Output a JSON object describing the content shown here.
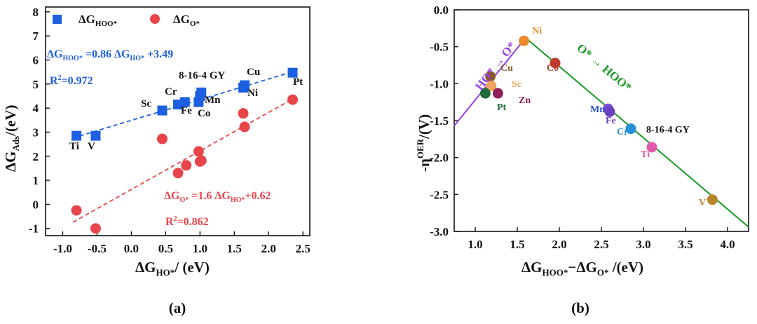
{
  "panel_a": {
    "label": "(a)",
    "axis": {
      "xlabel_base": "ΔG",
      "xlabel_sub": "HO*",
      "xlabel_tail": "/ (eV)",
      "ylabel_base": "ΔG",
      "ylabel_sub": "Ads",
      "ylabel_tail": "/(eV)"
    },
    "legend": [
      {
        "base": "ΔG",
        "sub": "HOO*",
        "color": "#1c5fe0",
        "marker": "square"
      },
      {
        "base": "ΔG",
        "sub": "O*",
        "color": "#e8454b",
        "marker": "circle"
      }
    ],
    "eq_hoo": {
      "t1": "ΔG",
      "t2": "HOO*",
      "t3": " =0.86 ΔG",
      "t4": "HO*",
      "t5": " +3.49"
    },
    "r2_hoo": {
      "t1": "R",
      "t2": "2",
      "t3": "=0.972"
    },
    "eq_o": {
      "t1": "ΔG",
      "t2": "O*",
      "t3": " =1.6 ΔG",
      "t4": "HO*",
      "t5": "+0.62"
    },
    "r2_o": {
      "t1": "R",
      "t2": "2",
      "t3": "=0.862"
    },
    "point_labels": [
      "Ti",
      "V",
      "Sc",
      "Cr",
      "Fe",
      "Co",
      "Mn",
      "8-16-4 GY",
      "Cu",
      "Ni",
      "Pt"
    ]
  },
  "panel_b": {
    "label": "(b)",
    "axis": {
      "xlabel": "ΔG",
      "xlabel_sub1": "HOO*",
      "xlabel_mid": "−ΔG",
      "xlabel_sub2": "O*",
      "xlabel_tail": " /(eV)",
      "ylabel_pre": "-η",
      "ylabel_sup": "OER",
      "ylabel_tail": "/(V)"
    },
    "line_labels": {
      "left": "HO* → O*",
      "right": "O* → HOO*"
    },
    "colors": {
      "left_line": "#9a3ee0",
      "right_line": "#1a9a28"
    }
  },
  "chart_data": [
    {
      "type": "scatter",
      "xlabel": "ΔGHO*/ (eV)",
      "ylabel": "ΔGAds/(eV)",
      "xlim": [
        -1.25,
        2.6
      ],
      "ylim": [
        -1.3,
        8.2
      ],
      "xticks": [
        -1.0,
        -0.5,
        0.0,
        0.5,
        1.0,
        1.5,
        2.0,
        2.5
      ],
      "yticks": [
        -1,
        0,
        1,
        2,
        3,
        4,
        5,
        6,
        7,
        8
      ],
      "grid": false,
      "legend_position": "top-left",
      "series": [
        {
          "name": "ΔGHOO*",
          "color": "#1c5fe0",
          "marker": "square",
          "x": [
            -0.8,
            -0.52,
            0.45,
            0.68,
            0.78,
            0.98,
            1.0,
            1.02,
            1.63,
            1.65,
            2.35
          ],
          "y": [
            2.85,
            2.85,
            3.9,
            4.15,
            4.25,
            4.25,
            4.5,
            4.65,
            4.85,
            4.95,
            5.47
          ]
        },
        {
          "name": "ΔGO*",
          "color": "#e8454b",
          "marker": "circle",
          "x": [
            -0.8,
            -0.52,
            0.45,
            0.68,
            0.8,
            0.98,
            1.0,
            1.02,
            1.63,
            1.65,
            2.35
          ],
          "y": [
            -0.25,
            -1.0,
            2.72,
            1.3,
            1.62,
            2.2,
            1.78,
            1.82,
            3.78,
            3.22,
            4.35
          ]
        }
      ],
      "fits": [
        {
          "series": "ΔGHOO*",
          "slope": 0.86,
          "intercept": 3.49,
          "r2": 0.972,
          "x_range": [
            -0.85,
            2.35
          ]
        },
        {
          "series": "ΔGO*",
          "slope": 1.6,
          "intercept": 0.62,
          "r2": 0.862,
          "x_range": [
            -0.85,
            2.35
          ]
        }
      ]
    },
    {
      "type": "scatter",
      "xlabel": "ΔGHOO*−ΔGO* /(eV)",
      "ylabel": "-ηOER/(V)",
      "xlim": [
        0.75,
        4.25
      ],
      "ylim": [
        -3.0,
        0.0
      ],
      "xticks": [
        1.0,
        1.5,
        2.0,
        2.5,
        3.0,
        3.5,
        4.0
      ],
      "yticks": [
        0.0,
        -0.5,
        -1.0,
        -1.5,
        -2.0,
        -2.5,
        -3.0
      ],
      "grid": false,
      "volcano_lines": [
        {
          "label": "HO* → O*",
          "x": [
            0.75,
            1.6
          ],
          "y": [
            -1.57,
            -0.38
          ]
        },
        {
          "label": "O* → HOO*",
          "x": [
            1.6,
            4.25
          ],
          "y": [
            -0.38,
            -2.94
          ]
        }
      ],
      "points": [
        {
          "label": "Ni",
          "x": 1.58,
          "y": -0.42,
          "color": "#f08a2c"
        },
        {
          "label": "Co",
          "x": 1.95,
          "y": -0.72,
          "color": "#c0392b"
        },
        {
          "label": "Cu",
          "x": 1.18,
          "y": -0.9,
          "color": "#8b5a2b"
        },
        {
          "label": "Sc",
          "x": 1.19,
          "y": -1.03,
          "color": "#f0a35c"
        },
        {
          "label": "Pt",
          "x": 1.12,
          "y": -1.13,
          "color": "#1e6b38"
        },
        {
          "label": "Zn",
          "x": 1.27,
          "y": -1.13,
          "color": "#8e1f5b"
        },
        {
          "label": "Mn",
          "x": 2.58,
          "y": -1.34,
          "color": "#7c4ed8"
        },
        {
          "label": "Fe",
          "x": 2.6,
          "y": -1.38,
          "color": "#6a3fc0"
        },
        {
          "label": "Cr",
          "x": 2.85,
          "y": -1.61,
          "color": "#2a8fd6"
        },
        {
          "label": "8-16-4 GY",
          "x": 2.85,
          "y": -1.61,
          "color": "#2a8fd6"
        },
        {
          "label": "Ti",
          "x": 3.1,
          "y": -1.86,
          "color": "#e05aa8"
        },
        {
          "label": "V",
          "x": 3.82,
          "y": -2.57,
          "color": "#b8862a"
        }
      ]
    }
  ]
}
